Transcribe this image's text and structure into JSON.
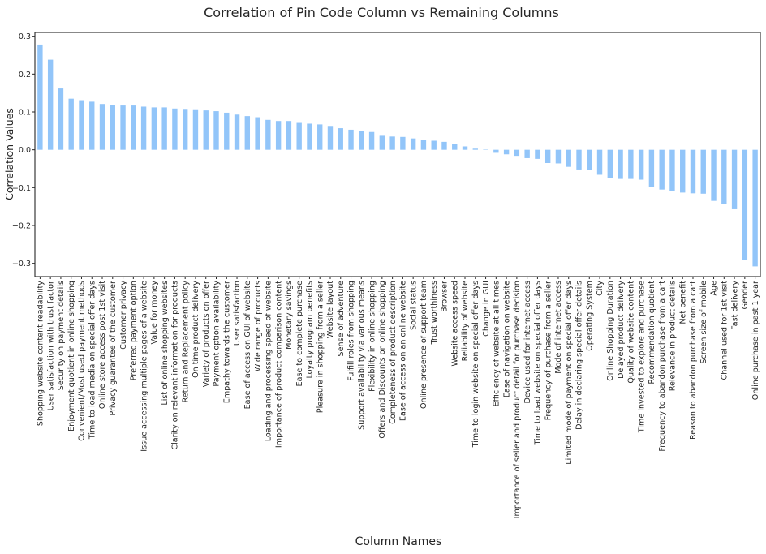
{
  "chart_data": {
    "type": "bar",
    "title": "Correlation of Pin Code Column vs Remaining Columns",
    "xlabel": "Column Names",
    "ylabel": "Correlation Values",
    "ylim": [
      -0.335,
      0.31
    ],
    "yticks": [
      0.3,
      0.2,
      0.1,
      0.0,
      -0.1,
      -0.2,
      -0.3
    ],
    "ytick_labels": [
      "0.3",
      "0.2",
      "0.1",
      "0.0",
      "−0.1",
      "−0.2",
      "−0.3"
    ],
    "bar_color": "#92c5f9",
    "grid": false,
    "categories": [
      "Shopping website content readability",
      "User satisfaction with trust factor",
      "Security on payment details",
      "Enjoyment quotient in online shopping",
      "Convenient/Most used payment methods",
      "Time to load media on special offer days",
      "Online store access post 1st visit",
      "Privacy guarantee of the customer",
      "Customer privacy",
      "Preferred payment option",
      "Issue accessing multiple pages of a website",
      "Value for money",
      "List of online shopping websites",
      "Clarity on relevant information for products",
      "Return and Replacement policy",
      "On time product delivery",
      "Variety of products on offer",
      "Payment option availability",
      "Empathy towards the customer",
      "User satisfaction",
      "Ease of access on GUI of website",
      "Wide range of products",
      "Loading and processing speed of website",
      "Importance of product comparison content",
      "Monetary savings",
      "Ease to complete purchase",
      "Loyalty program benefits",
      "Pleasure in shopping from a seller",
      "Website layout",
      "Sense of adventure",
      "Fulfill roles from shopping",
      "Support availability via various means",
      "Flexibility in online shopping",
      "Offers and Discounts on online shopping",
      "Completeness of product description",
      "Ease of access on an online website",
      "Social status",
      "Online presence of support team",
      "Trust worthiness",
      "Browser",
      "Website access speed",
      "Reliability of website",
      "Time to login website on special offer days",
      "Change in GUI",
      "Efficiency of website at all times",
      "Ease of navigation on website",
      "Importance of seller and product detail for purchase decision",
      "Device used for internet access",
      "Time to load website on special offer days",
      "Frequency of purchase from a seller",
      "Mode of internet access",
      "Limited mode of payment on special offer days",
      "Delay in declaring special offer details",
      "Operating System",
      "City",
      "Online Shopping Duration",
      "Delayed product delivery",
      "Quality of website content",
      "Time invested to explore and purchase",
      "Recommendation quotient",
      "Frequency to abandon purchase from a cart",
      "Relevance in product details",
      "Net benefit",
      "Reason to abandon purchase from a cart",
      "Screen size of mobile",
      "Age",
      "Channel used for 1st visit",
      "Fast delivery",
      "Gender",
      "Online purchase in past 1 year"
    ],
    "values": [
      0.278,
      0.238,
      0.162,
      0.135,
      0.131,
      0.127,
      0.121,
      0.119,
      0.117,
      0.117,
      0.114,
      0.112,
      0.112,
      0.109,
      0.108,
      0.107,
      0.104,
      0.102,
      0.098,
      0.093,
      0.089,
      0.086,
      0.079,
      0.076,
      0.076,
      0.071,
      0.069,
      0.067,
      0.063,
      0.057,
      0.053,
      0.049,
      0.047,
      0.037,
      0.035,
      0.034,
      0.03,
      0.027,
      0.024,
      0.021,
      0.016,
      0.009,
      0.003,
      0.001,
      -0.008,
      -0.012,
      -0.016,
      -0.022,
      -0.024,
      -0.035,
      -0.036,
      -0.045,
      -0.052,
      -0.053,
      -0.066,
      -0.075,
      -0.077,
      -0.077,
      -0.079,
      -0.099,
      -0.105,
      -0.109,
      -0.113,
      -0.115,
      -0.116,
      -0.135,
      -0.143,
      -0.157,
      -0.291,
      -0.308
    ]
  }
}
